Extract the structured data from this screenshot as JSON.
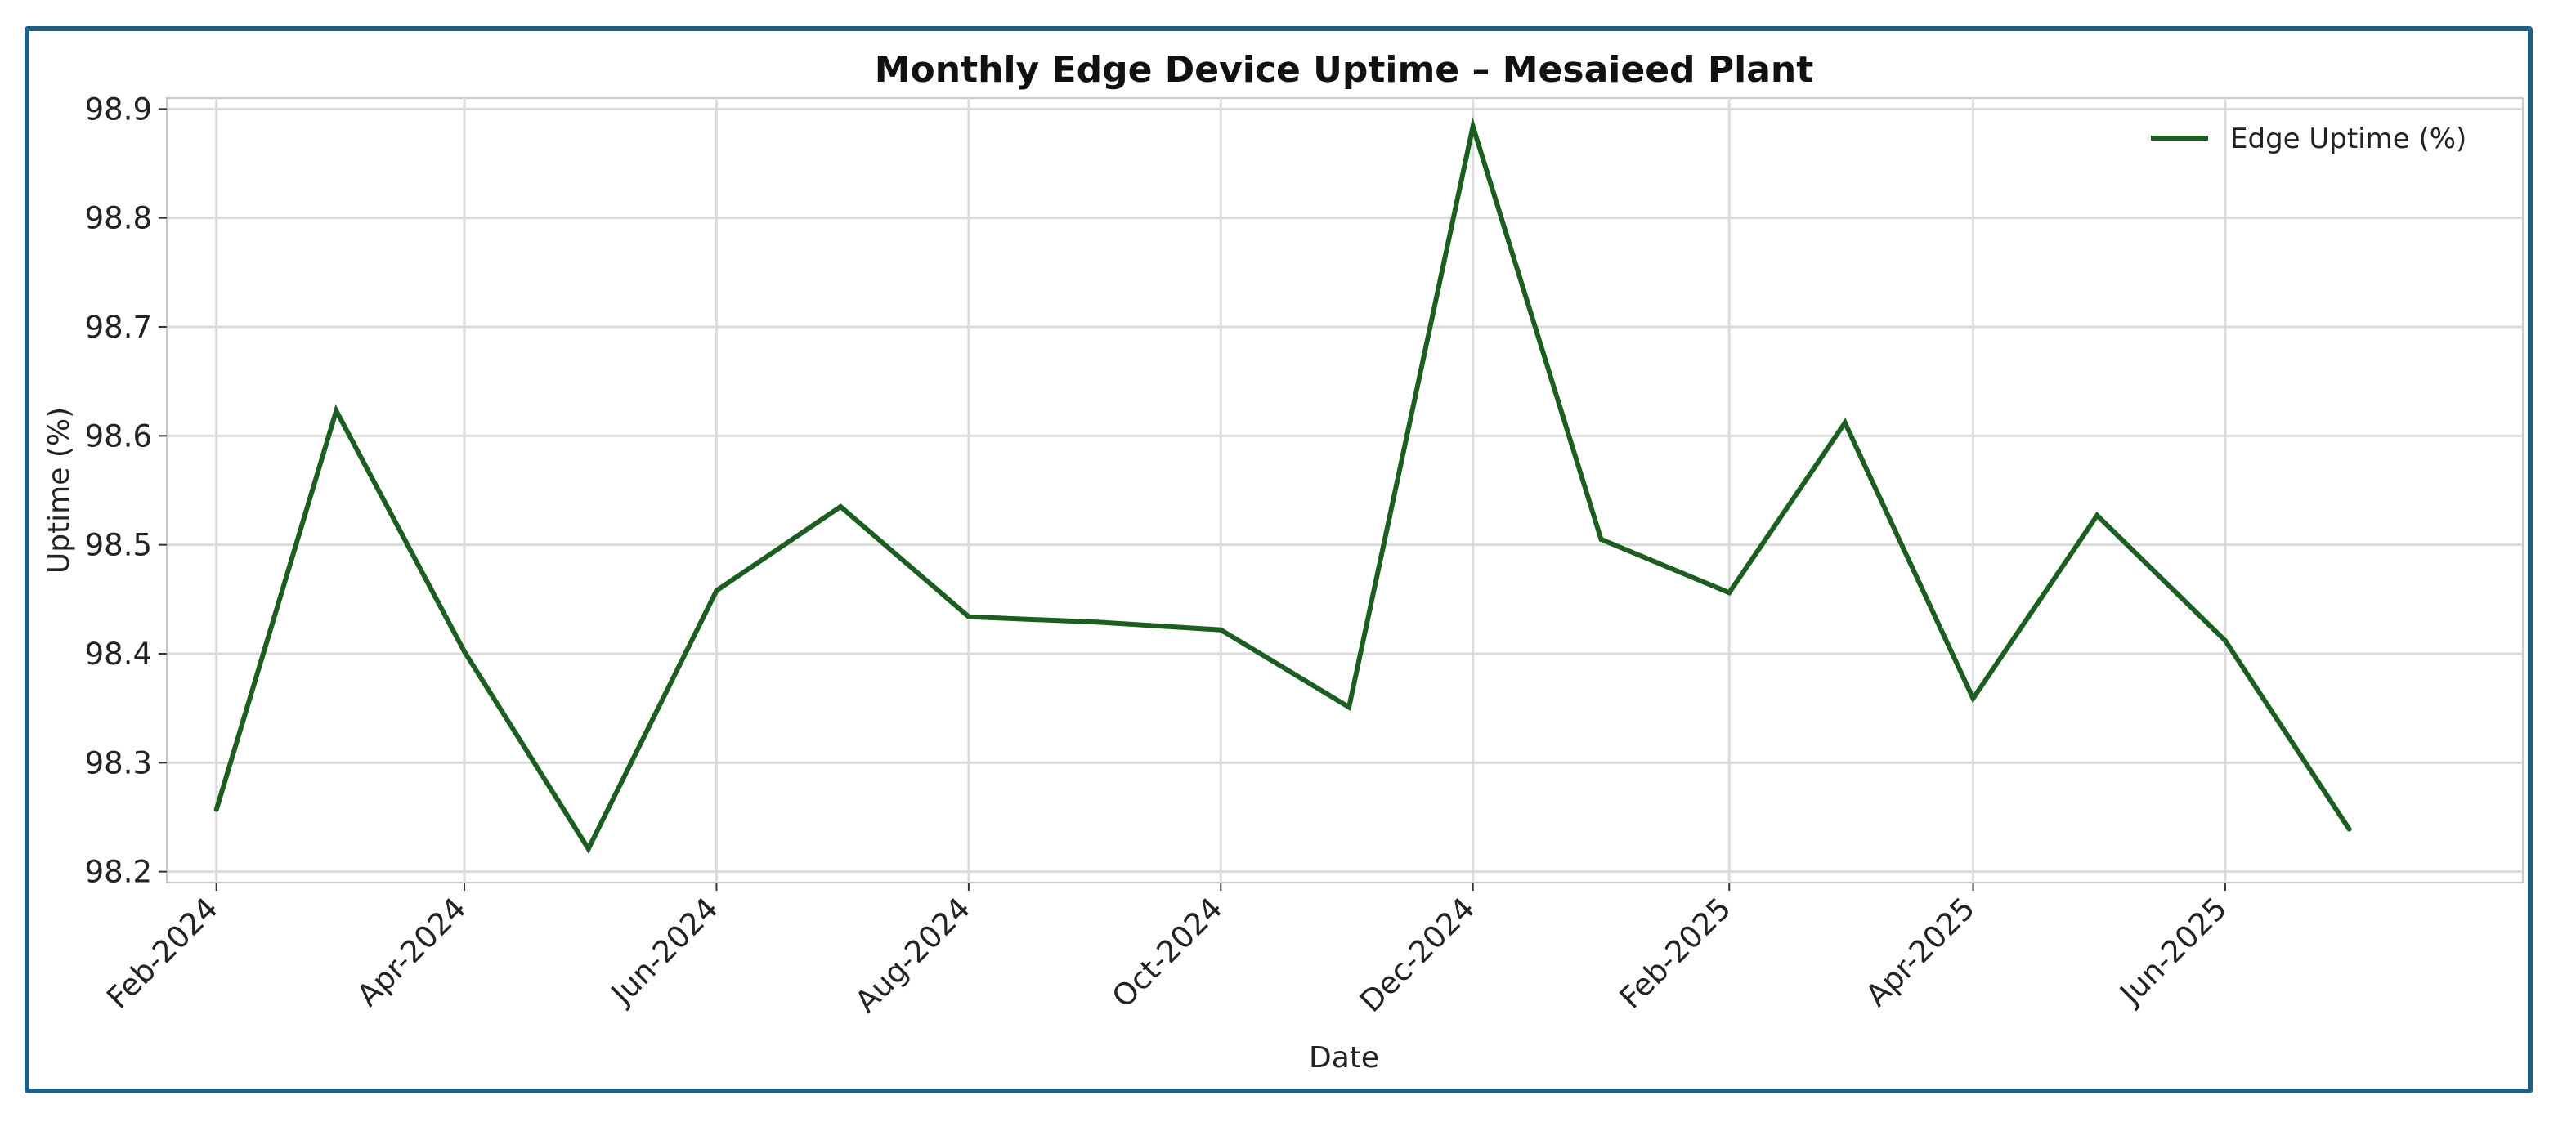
{
  "chart_data": {
    "type": "line",
    "title": "Monthly Edge Device Uptime – Mesaieed Plant",
    "xlabel": "Date",
    "ylabel": "Uptime (%)",
    "x": [
      "2024-02-01",
      "2024-03-01",
      "2024-04-01",
      "2024-05-01",
      "2024-06-01",
      "2024-07-01",
      "2024-08-01",
      "2024-09-01",
      "2024-10-01",
      "2024-11-01",
      "2024-12-01",
      "2025-01-01",
      "2025-02-01",
      "2025-03-01",
      "2025-04-01",
      "2025-05-01",
      "2025-06-01",
      "2025-07-01"
    ],
    "x_ticks": [
      {
        "date": "2024-02-01",
        "label": "Feb-2024"
      },
      {
        "date": "2024-04-01",
        "label": "Apr-2024"
      },
      {
        "date": "2024-06-01",
        "label": "Jun-2024"
      },
      {
        "date": "2024-08-01",
        "label": "Aug-2024"
      },
      {
        "date": "2024-10-01",
        "label": "Oct-2024"
      },
      {
        "date": "2024-12-01",
        "label": "Dec-2024"
      },
      {
        "date": "2025-02-01",
        "label": "Feb-2025"
      },
      {
        "date": "2025-04-01",
        "label": "Apr-2025"
      },
      {
        "date": "2025-06-01",
        "label": "Jun-2025"
      }
    ],
    "ylim": [
      98.19,
      98.91
    ],
    "y_ticks": [
      98.2,
      98.3,
      98.4,
      98.5,
      98.6,
      98.7,
      98.8,
      98.9
    ],
    "xlim": [
      "2024-01-20",
      "2025-08-12"
    ],
    "series": [
      {
        "name": "Edge Uptime (%)",
        "color": "#1b5e20",
        "values": [
          98.257,
          98.623,
          98.402,
          98.221,
          98.458,
          98.535,
          98.434,
          98.429,
          98.422,
          98.351,
          98.884,
          98.505,
          98.456,
          98.612,
          98.359,
          98.527,
          98.412,
          98.239
        ]
      }
    ],
    "grid": true,
    "legend_position": "top-right"
  }
}
